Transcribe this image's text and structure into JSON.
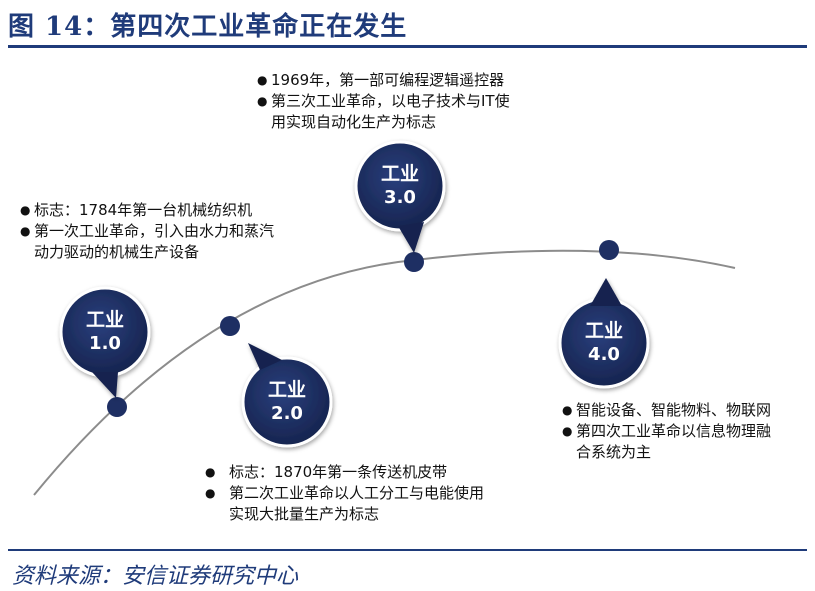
{
  "header": {
    "title": "图 14：第四次工业革命正在发生"
  },
  "stages": [
    {
      "line1": "工业",
      "line2": "1.0",
      "bullets": [
        "标志：1784年第一台机械纺织机",
        "第一次工业革命，引入由水力和蒸汽",
        "动力驱动的机械生产设备"
      ]
    },
    {
      "line1": "工业",
      "line2": "2.0",
      "bullets": [
        "标志：1870年第一条传送机皮带",
        "第二次工业革命以人工分工与电能使用",
        "实现大批量生产为标志"
      ]
    },
    {
      "line1": "工业",
      "line2": "3.0",
      "bullets": [
        "1969年，第一部可编程逻辑遥控器",
        "第三次工业革命，以电子技术与IT使",
        "用实现自动化生产为标志"
      ]
    },
    {
      "line1": "工业",
      "line2": "4.0",
      "bullets": [
        "智能设备、智能物料、物联网",
        "第四次工业革命以信息物理融",
        "合系统为主"
      ]
    }
  ],
  "footer": {
    "source": "资料来源：安信证券研究中心"
  },
  "colors": {
    "accent": "#1f3b7a",
    "bubble": "#1e2f63",
    "curve": "#8c8c8c"
  }
}
